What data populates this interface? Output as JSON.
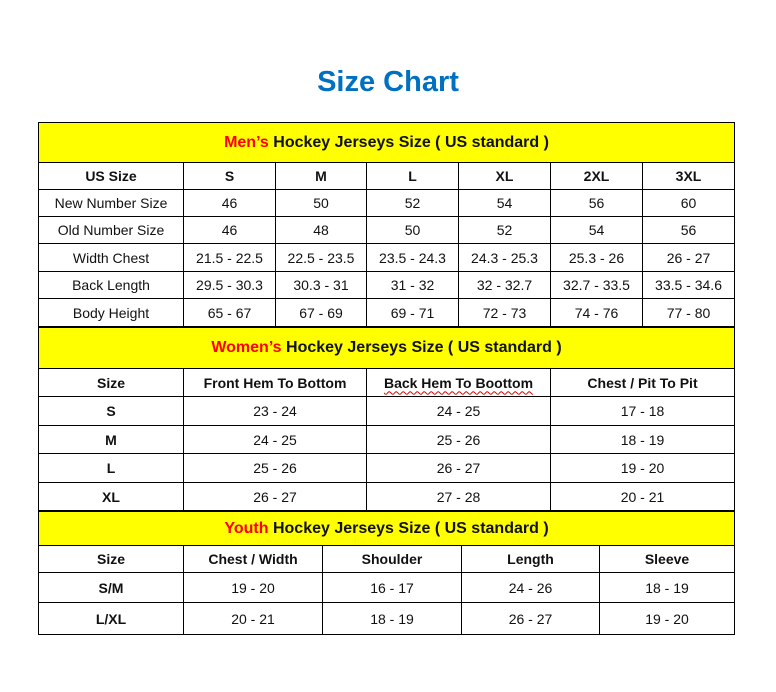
{
  "title": "Size Chart",
  "colors": {
    "title": "#0070C0",
    "section_bg": "#FFFF00",
    "section_accent": "#FF0000"
  },
  "men": {
    "title_accent": "Men’s",
    "title_rest": " Hockey Jerseys Size ( US standard )",
    "headers": [
      "US Size",
      "S",
      "M",
      "L",
      "XL",
      "2XL",
      "3XL"
    ],
    "rows": [
      [
        "New Number Size",
        "46",
        "50",
        "52",
        "54",
        "56",
        "60"
      ],
      [
        "Old Number Size",
        "46",
        "48",
        "50",
        "52",
        "54",
        "56"
      ],
      [
        "Width Chest",
        "21.5 - 22.5",
        "22.5 - 23.5",
        "23.5 - 24.3",
        "24.3 - 25.3",
        "25.3 - 26",
        "26 - 27"
      ],
      [
        "Back Length",
        "29.5 - 30.3",
        "30.3 - 31",
        "31 - 32",
        "32 - 32.7",
        "32.7 - 33.5",
        "33.5 - 34.6"
      ],
      [
        "Body Height",
        "65 - 67",
        "67 - 69",
        "69 - 71",
        "72 - 73",
        "74 - 76",
        "77 - 80"
      ]
    ]
  },
  "women": {
    "title_accent": "Women’s",
    "title_rest": " Hockey Jerseys Size ( US standard )",
    "headers": [
      "Size",
      "Front Hem To Bottom",
      "Back Hem To Boottom",
      "Chest / Pit To Pit"
    ],
    "rows": [
      [
        "S",
        "23 - 24",
        "24 - 25",
        "17 - 18"
      ],
      [
        "M",
        "24 - 25",
        "25 - 26",
        "18 - 19"
      ],
      [
        "L",
        "25 - 26",
        "26 - 27",
        "19 - 20"
      ],
      [
        "XL",
        "26 - 27",
        "27 - 28",
        "20 - 21"
      ]
    ]
  },
  "youth": {
    "title_accent": "Youth",
    "title_rest": " Hockey Jerseys Size ( US standard )",
    "headers": [
      "Size",
      "Chest / Width",
      "Shoulder",
      "Length",
      "Sleeve"
    ],
    "rows": [
      [
        "S/M",
        "19 - 20",
        "16 - 17",
        "24 - 26",
        "18 - 19"
      ],
      [
        "L/XL",
        "20 - 21",
        "18 - 19",
        "26 - 27",
        "19 - 20"
      ]
    ]
  }
}
